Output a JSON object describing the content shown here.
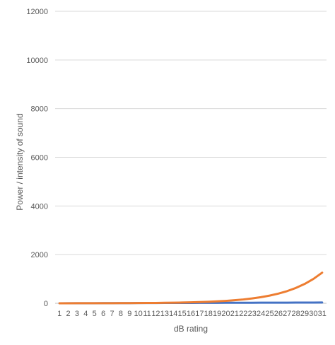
{
  "chart_data": {
    "type": "line",
    "title": "",
    "xlabel": "dB rating",
    "ylabel": "Power / intensity of sound",
    "x": [
      1,
      2,
      3,
      4,
      5,
      6,
      7,
      8,
      9,
      10,
      11,
      12,
      13,
      14,
      15,
      16,
      17,
      18,
      19,
      20,
      21,
      22,
      23,
      24,
      25,
      26,
      27,
      28,
      29,
      30,
      31
    ],
    "ylim": [
      0,
      12000
    ],
    "yticks": [
      0,
      2000,
      4000,
      6000,
      8000,
      10000,
      12000
    ],
    "grid": true,
    "legend": "none",
    "series": [
      {
        "color": "#4472c4",
        "values": [
          1,
          2,
          3,
          4,
          5,
          6,
          7,
          8,
          9,
          10,
          11,
          12,
          13,
          14,
          15,
          16,
          17,
          18,
          19,
          20,
          21,
          22,
          23,
          24,
          25,
          26,
          27,
          28,
          29,
          30,
          31
        ]
      },
      {
        "color": "#ed7d31",
        "values": [
          1.3,
          1.6,
          2.0,
          2.5,
          3.2,
          4.0,
          5.0,
          6.3,
          7.9,
          10,
          13,
          16,
          20,
          25,
          32,
          40,
          50,
          63,
          79,
          100,
          126,
          158,
          200,
          251,
          316,
          398,
          501,
          631,
          794,
          1000,
          1259
        ]
      }
    ]
  }
}
